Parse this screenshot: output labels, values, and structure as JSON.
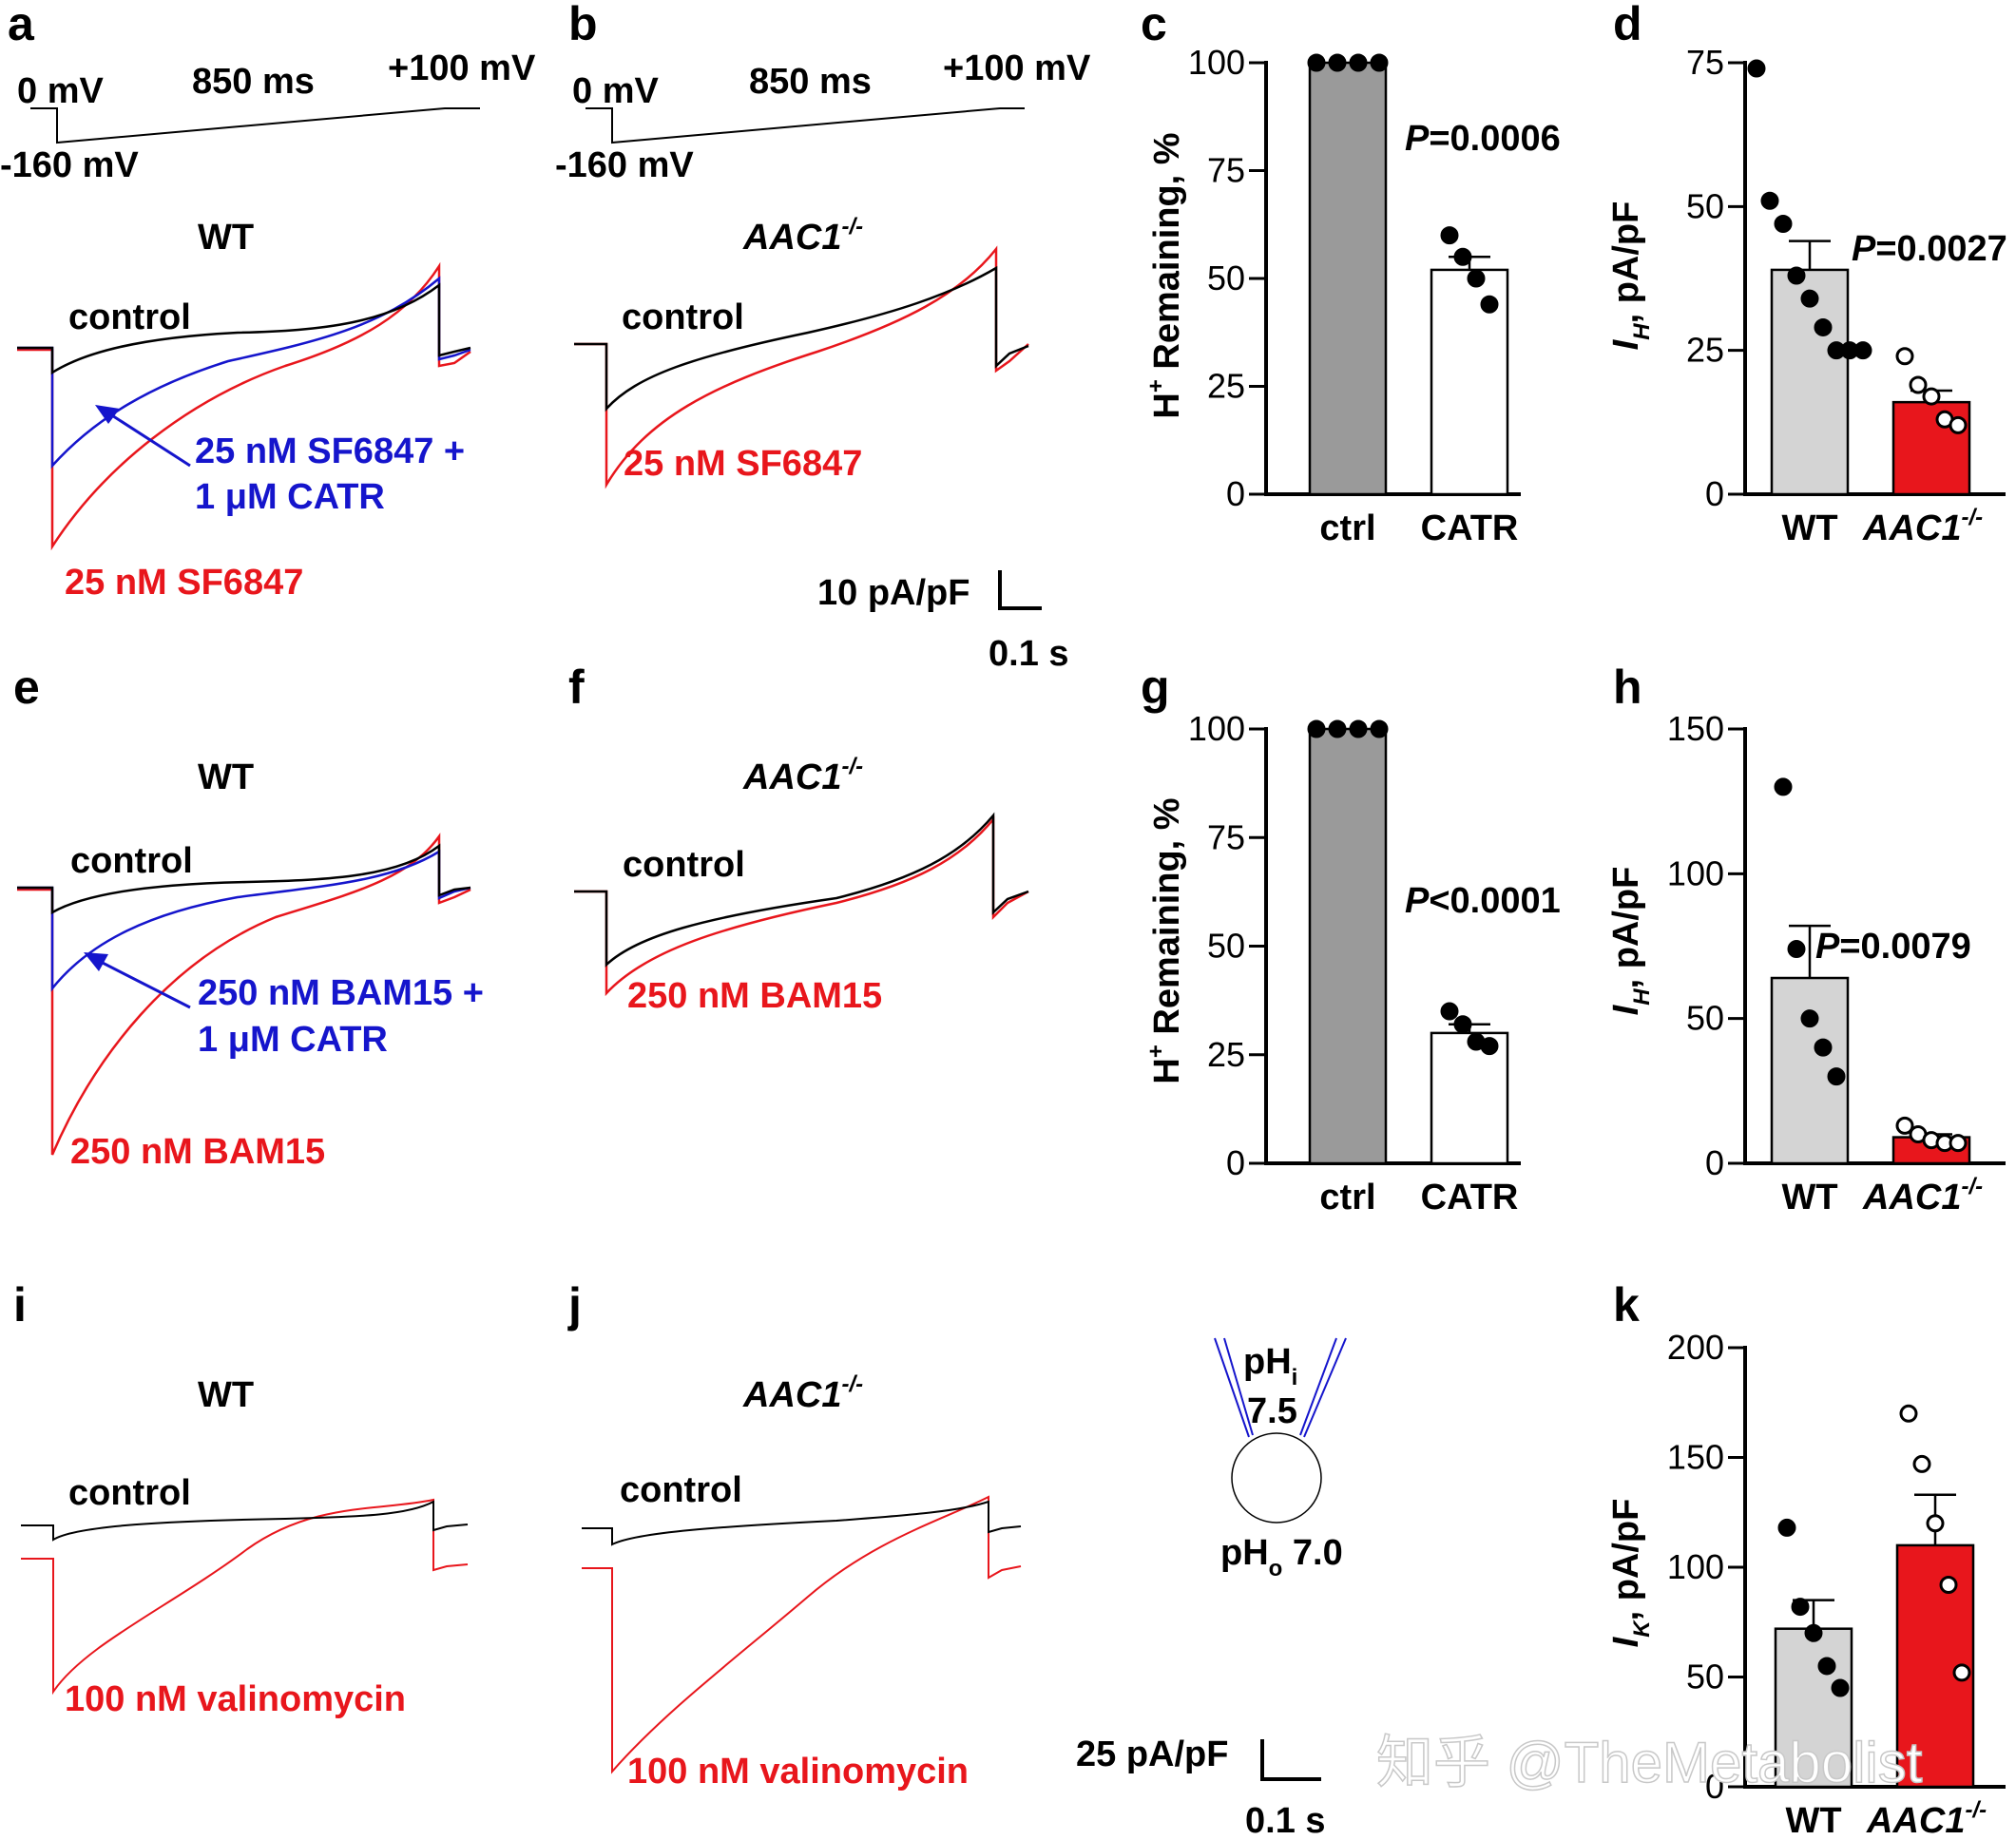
{
  "panel_letters": [
    "a",
    "b",
    "c",
    "d",
    "e",
    "f",
    "g",
    "h",
    "i",
    "j",
    "k"
  ],
  "protocol": {
    "v_hold": "0 mV",
    "v_min": "-160 mV",
    "v_max": "+100 mV",
    "duration": "850 ms"
  },
  "genotypes": {
    "wt": "WT",
    "ko_base": "AAC1",
    "ko_sup": "-/-"
  },
  "labels": {
    "control": "control",
    "sf_red": "25 nM SF6847",
    "sf_blue_1": "25 nM SF6847 +",
    "sf_blue_2": "1 μM CATR",
    "bam_red": "250 nM BAM15",
    "bam_blue_1": "250 nM BAM15 +",
    "bam_blue_2": "1 μM CATR",
    "val_red": "100 nM valinomycin"
  },
  "scalebars": {
    "top_y": "10 pA/pF",
    "top_x": "0.1 s",
    "bot_y": "25 pA/pF",
    "bot_x": "0.1 s"
  },
  "axes": {
    "remaining": {
      "ylabel_pre": "H",
      "ylabel_sup": "+",
      "ylabel_post": " Remaining, %"
    },
    "ih": {
      "ylabel_main": "I",
      "ylabel_sub": "H",
      "ylabel_post": ", pA/pF"
    },
    "ik": {
      "ylabel_main": "I",
      "ylabel_sub": "K",
      "ylabel_post": ", pA/pF"
    }
  },
  "pipette": {
    "pHi_label": "pH",
    "pHi_sub": "i",
    "pHi_value": "7.5",
    "pHo_label": "pH",
    "pHo_sub": "o",
    "pHo_value": " 7.0"
  },
  "watermark": "知乎 @TheMetabolist",
  "colors": {
    "red": "#e8161c",
    "blue": "#1515cc",
    "gray": "#9a9a9a",
    "lightgray": "#d4d4d4",
    "black": "#000000"
  },
  "chart_data": [
    {
      "panel": "c",
      "type": "bar",
      "categories": [
        "ctrl",
        "CATR"
      ],
      "values": [
        100,
        52
      ],
      "sem": [
        0,
        3
      ],
      "points": [
        [
          100,
          100,
          100,
          100
        ],
        [
          60,
          55,
          50,
          44
        ]
      ],
      "ylim": [
        0,
        100
      ],
      "yticks": [
        "0",
        "25",
        "50",
        "75",
        "100"
      ],
      "annotation": "P=0.0006"
    },
    {
      "panel": "d",
      "type": "bar",
      "categories": [
        "WT",
        "AAC1-/-"
      ],
      "values": [
        39,
        16
      ],
      "sem": [
        5,
        2
      ],
      "points": [
        [
          74,
          51,
          47,
          38,
          34,
          29,
          25,
          25,
          25
        ],
        [
          24,
          19,
          17,
          13,
          12
        ]
      ],
      "ylim": [
        0,
        75
      ],
      "yticks": [
        "0",
        "25",
        "50",
        "75"
      ],
      "annotation": "P=0.0027"
    },
    {
      "panel": "g",
      "type": "bar",
      "categories": [
        "ctrl",
        "CATR"
      ],
      "values": [
        100,
        30
      ],
      "sem": [
        0,
        2
      ],
      "points": [
        [
          100,
          100,
          100,
          100
        ],
        [
          35,
          32,
          28,
          27
        ]
      ],
      "ylim": [
        0,
        100
      ],
      "yticks": [
        "0",
        "25",
        "50",
        "75",
        "100"
      ],
      "annotation": "P<0.0001"
    },
    {
      "panel": "h",
      "type": "bar",
      "categories": [
        "WT",
        "AAC1-/-"
      ],
      "values": [
        64,
        9
      ],
      "sem": [
        18,
        1
      ],
      "points": [
        [
          130,
          74,
          50,
          40,
          30
        ],
        [
          13,
          10,
          8,
          7,
          7
        ]
      ],
      "ylim": [
        0,
        150
      ],
      "yticks": [
        "0",
        "50",
        "100",
        "150"
      ],
      "annotation": "P=0.0079"
    },
    {
      "panel": "k",
      "type": "bar",
      "categories": [
        "WT",
        "AAC1-/-"
      ],
      "values": [
        72,
        110
      ],
      "sem": [
        13,
        23
      ],
      "points": [
        [
          118,
          82,
          70,
          55,
          45
        ],
        [
          170,
          147,
          120,
          92,
          52
        ]
      ],
      "ylim": [
        0,
        200
      ],
      "yticks": [
        "0",
        "50",
        "100",
        "150",
        "200"
      ],
      "annotation": ""
    }
  ]
}
